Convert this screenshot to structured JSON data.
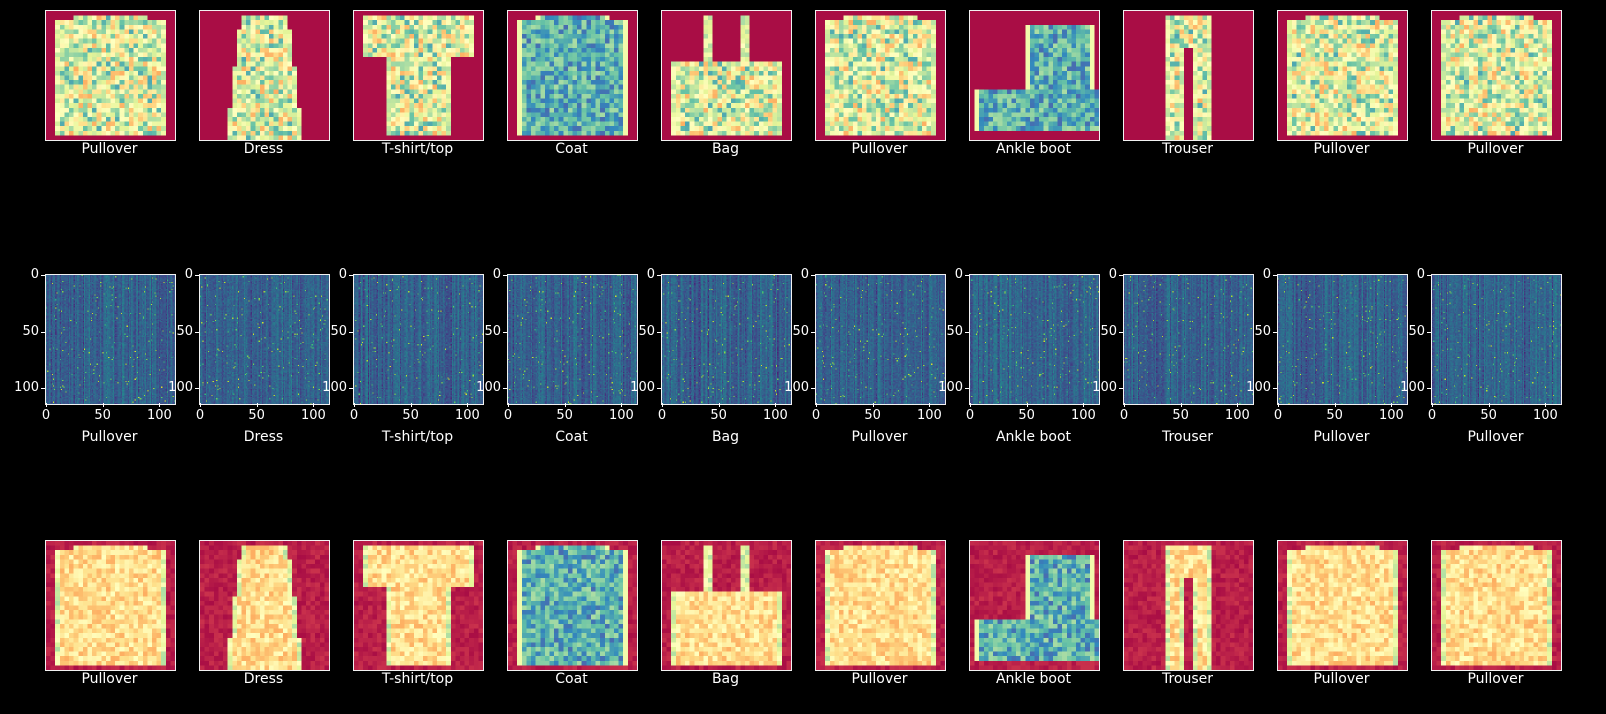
{
  "rows": [
    {
      "name": "original-images",
      "colormap": "Spectral",
      "has_axes": false,
      "labels": [
        "Pullover",
        "Dress",
        "T-shirt/top",
        "Coat",
        "Bag",
        "Pullover",
        "Ankle boot",
        "Trouser",
        "Pullover",
        "Pullover"
      ]
    },
    {
      "name": "encoded-feature-maps",
      "colormap": "viridis",
      "has_axes": true,
      "xticks": [
        "0",
        "50",
        "100"
      ],
      "yticks": [
        "0",
        "50",
        "100"
      ],
      "labels": [
        "Pullover",
        "Dress",
        "T-shirt/top",
        "Coat",
        "Bag",
        "Pullover",
        "Ankle boot",
        "Trouser",
        "Pullover",
        "Pullover"
      ]
    },
    {
      "name": "reconstructed-images",
      "colormap": "Spectral",
      "has_axes": false,
      "labels": [
        "Pullover",
        "Dress",
        "T-shirt/top",
        "Coat",
        "Bag",
        "Pullover",
        "Ankle boot",
        "Trouser",
        "Pullover",
        "Pullover"
      ]
    }
  ],
  "colors": {
    "background": "#000000",
    "frame": "#f2f2f2",
    "text": "#ffffff"
  }
}
